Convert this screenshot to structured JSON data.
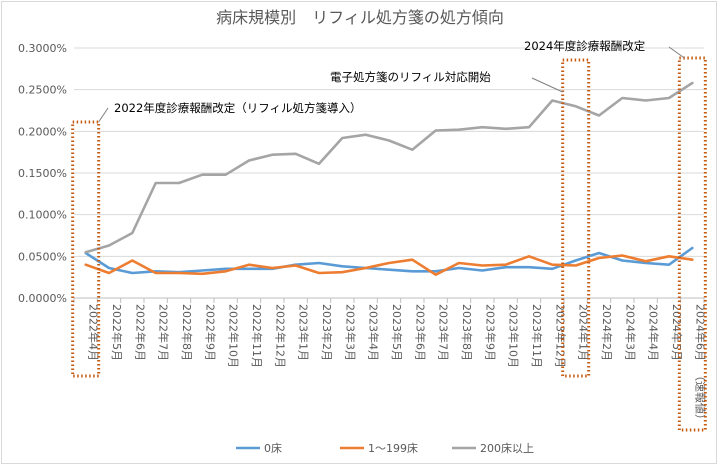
{
  "chart_data": {
    "type": "line",
    "title": "病床規模別　リフィル処方箋の処方傾向",
    "xlabel": "",
    "ylabel": "",
    "ylim": [
      0,
      0.3
    ],
    "y_unit": "%",
    "yticks": [
      "0.0000%",
      "0.0500%",
      "0.1000%",
      "0.1500%",
      "0.2000%",
      "0.2500%",
      "0.3000%"
    ],
    "grid": true,
    "legend_position": "bottom",
    "categories": [
      "2022年4月",
      "2022年5月",
      "2022年6月",
      "2022年7月",
      "2022年8月",
      "2022年9月",
      "2022年10月",
      "2022年11月",
      "2022年12月",
      "2023年1月",
      "2023年2月",
      "2023年3月",
      "2023年4月",
      "2023年5月",
      "2023年6月",
      "2023年7月",
      "2023年8月",
      "2023年9月",
      "2023年10月",
      "2023年11月",
      "2023年12月",
      "2024年1月",
      "2024年2月",
      "2024年3月",
      "2024年4月",
      "2024年5月",
      "2024年6月"
    ],
    "last_category_note": "（速報値）",
    "series": [
      {
        "name": "0床",
        "color": "#5b9bd5",
        "values": [
          0.054,
          0.036,
          0.03,
          0.032,
          0.031,
          0.033,
          0.035,
          0.035,
          0.035,
          0.04,
          0.042,
          0.038,
          0.036,
          0.034,
          0.032,
          0.032,
          0.036,
          0.033,
          0.037,
          0.037,
          0.035,
          0.045,
          0.054,
          0.045,
          0.042,
          0.04,
          0.06
        ]
      },
      {
        "name": "1～199床",
        "color": "#ed7d31",
        "values": [
          0.04,
          0.03,
          0.045,
          0.03,
          0.03,
          0.029,
          0.032,
          0.04,
          0.036,
          0.039,
          0.03,
          0.031,
          0.036,
          0.042,
          0.046,
          0.028,
          0.042,
          0.039,
          0.04,
          0.05,
          0.04,
          0.039,
          0.048,
          0.051,
          0.044,
          0.05,
          0.046
        ]
      },
      {
        "name": "200床以上",
        "color": "#a5a5a5",
        "values": [
          0.055,
          0.063,
          0.078,
          0.138,
          0.138,
          0.148,
          0.148,
          0.165,
          0.172,
          0.173,
          0.161,
          0.192,
          0.196,
          0.189,
          0.178,
          0.201,
          0.202,
          0.205,
          0.203,
          0.205,
          0.237,
          0.23,
          0.219,
          0.24,
          0.237,
          0.24,
          0.258
        ]
      }
    ],
    "annotations": [
      {
        "text": "2022年度診療報酬改定（リフィル処方箋導入）",
        "category_index": 0
      },
      {
        "text": "電子処方箋のリフィル対応開始",
        "category_index": 21
      },
      {
        "text": "2024年度診療報酬改定",
        "category_index": 26
      }
    ],
    "highlight_color": "#c55a11"
  }
}
